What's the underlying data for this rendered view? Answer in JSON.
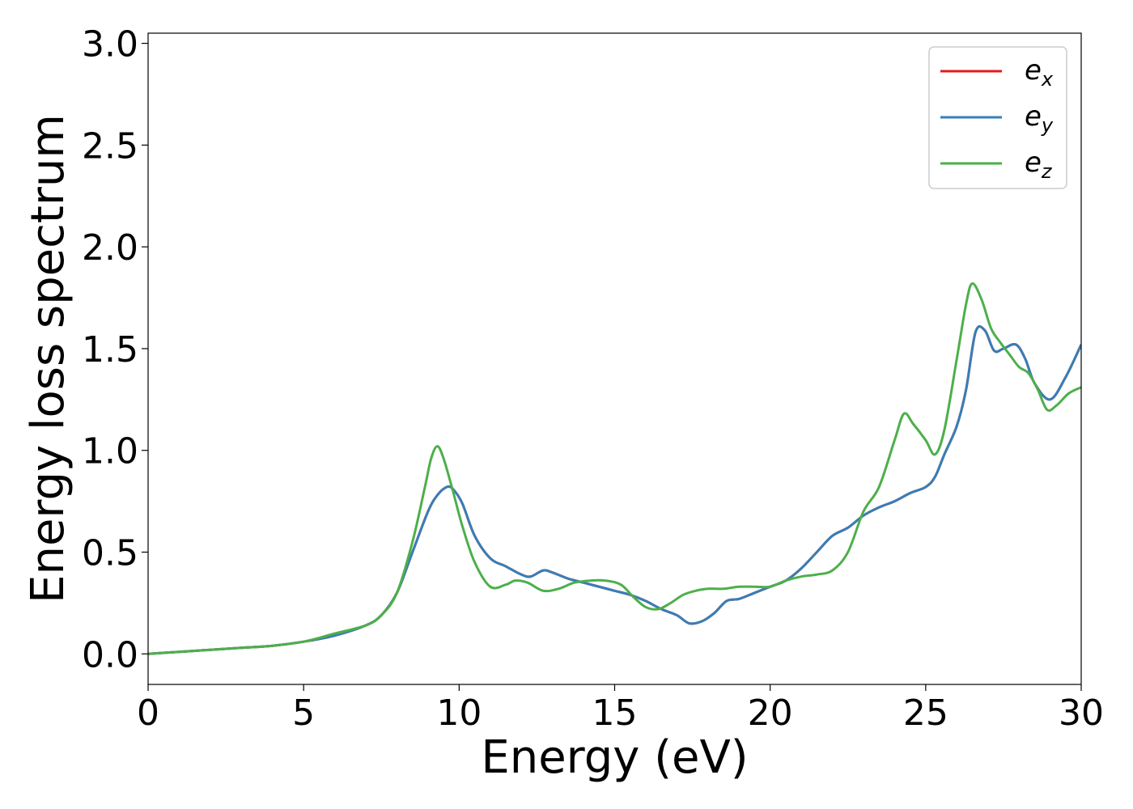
{
  "chart_data": {
    "type": "line",
    "xlabel": "Energy (eV)",
    "ylabel": "Energy loss spectrum",
    "xlim": [
      0,
      30
    ],
    "ylim": [
      -0.15,
      3.05
    ],
    "xticks": [
      0,
      5,
      10,
      15,
      20,
      25,
      30
    ],
    "xtick_labels": [
      "0",
      "5",
      "10",
      "15",
      "20",
      "25",
      "30"
    ],
    "yticks": [
      0.0,
      0.5,
      1.0,
      1.5,
      2.0,
      2.5,
      3.0
    ],
    "ytick_labels": [
      "0.0",
      "0.5",
      "1.0",
      "1.5",
      "2.0",
      "2.5",
      "3.0"
    ],
    "grid": false,
    "legend_position": "top-right",
    "series": [
      {
        "name": "e",
        "subscript": "x",
        "color": "#e41a1c",
        "x": [
          0,
          1,
          2,
          3,
          4,
          5,
          6,
          7,
          7.5,
          8,
          8.5,
          9,
          9.3,
          9.6,
          9.8,
          10.1,
          10.5,
          11,
          11.5,
          12,
          12.3,
          12.7,
          13,
          13.5,
          14,
          14.5,
          15,
          15.5,
          16,
          16.5,
          17,
          17.4,
          17.8,
          18.2,
          18.6,
          19,
          19.5,
          20,
          20.5,
          21,
          21.5,
          22,
          22.5,
          23,
          23.5,
          24,
          24.5,
          25,
          25.3,
          25.6,
          26,
          26.3,
          26.6,
          26.9,
          27.2,
          27.5,
          27.9,
          28.2,
          28.5,
          29,
          29.5,
          30
        ],
        "y": [
          0,
          0.01,
          0.02,
          0.03,
          0.04,
          0.06,
          0.09,
          0.14,
          0.19,
          0.3,
          0.5,
          0.7,
          0.78,
          0.82,
          0.81,
          0.74,
          0.58,
          0.47,
          0.43,
          0.39,
          0.38,
          0.41,
          0.4,
          0.37,
          0.35,
          0.33,
          0.31,
          0.29,
          0.26,
          0.22,
          0.19,
          0.15,
          0.16,
          0.2,
          0.26,
          0.27,
          0.3,
          0.33,
          0.36,
          0.42,
          0.5,
          0.58,
          0.62,
          0.68,
          0.72,
          0.75,
          0.79,
          0.82,
          0.87,
          0.98,
          1.12,
          1.3,
          1.58,
          1.59,
          1.49,
          1.5,
          1.52,
          1.45,
          1.33,
          1.25,
          1.36,
          1.52
        ]
      },
      {
        "name": "e",
        "subscript": "y",
        "color": "#377eb8",
        "x": [
          0,
          1,
          2,
          3,
          4,
          5,
          6,
          7,
          7.5,
          8,
          8.5,
          9,
          9.3,
          9.6,
          9.8,
          10.1,
          10.5,
          11,
          11.5,
          12,
          12.3,
          12.7,
          13,
          13.5,
          14,
          14.5,
          15,
          15.5,
          16,
          16.5,
          17,
          17.4,
          17.8,
          18.2,
          18.6,
          19,
          19.5,
          20,
          20.5,
          21,
          21.5,
          22,
          22.5,
          23,
          23.5,
          24,
          24.5,
          25,
          25.3,
          25.6,
          26,
          26.3,
          26.6,
          26.9,
          27.2,
          27.5,
          27.9,
          28.2,
          28.5,
          29,
          29.5,
          30
        ],
        "y": [
          0,
          0.01,
          0.02,
          0.03,
          0.04,
          0.06,
          0.09,
          0.14,
          0.19,
          0.3,
          0.5,
          0.7,
          0.78,
          0.82,
          0.81,
          0.74,
          0.58,
          0.47,
          0.43,
          0.39,
          0.38,
          0.41,
          0.4,
          0.37,
          0.35,
          0.33,
          0.31,
          0.29,
          0.26,
          0.22,
          0.19,
          0.15,
          0.16,
          0.2,
          0.26,
          0.27,
          0.3,
          0.33,
          0.36,
          0.42,
          0.5,
          0.58,
          0.62,
          0.68,
          0.72,
          0.75,
          0.79,
          0.82,
          0.87,
          0.98,
          1.12,
          1.3,
          1.58,
          1.59,
          1.49,
          1.5,
          1.52,
          1.45,
          1.33,
          1.25,
          1.36,
          1.52
        ]
      },
      {
        "name": "e",
        "subscript": "z",
        "color": "#4daf4a",
        "x": [
          0,
          1,
          2,
          3,
          4,
          5,
          6,
          7,
          7.5,
          8,
          8.5,
          8.9,
          9.1,
          9.3,
          9.5,
          9.8,
          10.1,
          10.5,
          11,
          11.5,
          11.8,
          12.2,
          12.7,
          13.2,
          13.7,
          14.2,
          14.7,
          15.2,
          15.6,
          16,
          16.4,
          16.8,
          17.2,
          17.6,
          18,
          18.5,
          19,
          19.5,
          20,
          20.5,
          21,
          21.5,
          22,
          22.5,
          23,
          23.5,
          24,
          24.3,
          24.6,
          25,
          25.3,
          25.6,
          26,
          26.3,
          26.5,
          26.8,
          27.1,
          27.4,
          27.7,
          28,
          28.3,
          28.6,
          28.9,
          29.2,
          29.6,
          30
        ],
        "y": [
          0,
          0.01,
          0.02,
          0.03,
          0.04,
          0.06,
          0.1,
          0.14,
          0.19,
          0.3,
          0.55,
          0.82,
          0.96,
          1.02,
          0.96,
          0.8,
          0.63,
          0.45,
          0.33,
          0.34,
          0.36,
          0.35,
          0.31,
          0.32,
          0.35,
          0.36,
          0.36,
          0.34,
          0.28,
          0.23,
          0.22,
          0.25,
          0.29,
          0.31,
          0.32,
          0.32,
          0.33,
          0.33,
          0.33,
          0.36,
          0.38,
          0.39,
          0.41,
          0.5,
          0.7,
          0.82,
          1.05,
          1.18,
          1.13,
          1.05,
          0.98,
          1.1,
          1.45,
          1.72,
          1.82,
          1.74,
          1.6,
          1.53,
          1.47,
          1.41,
          1.38,
          1.3,
          1.2,
          1.22,
          1.28,
          1.31
        ]
      }
    ]
  }
}
